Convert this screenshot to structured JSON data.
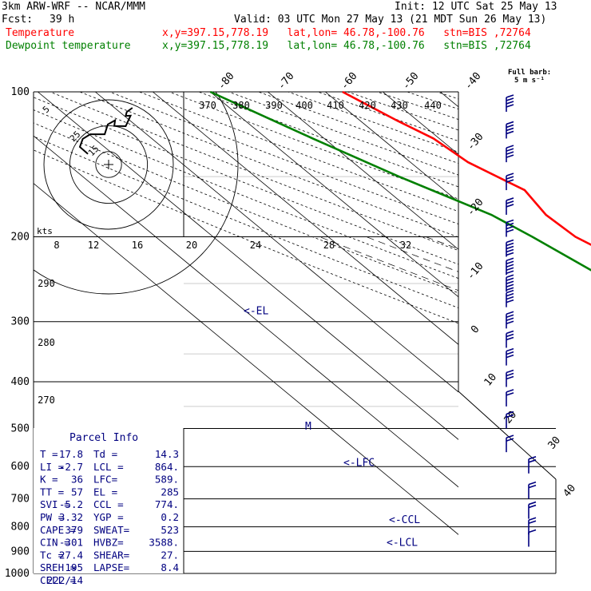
{
  "header": {
    "model": "3km ARW-WRF -- NCAR/MMM",
    "init": "Init: 12 UTC Sat 25 May 13",
    "fcst_label": "Fcst:",
    "fcst_value": "39 h",
    "valid": "Valid: 03 UTC Mon 27 May 13 (21 MDT Sun 26 May 13)",
    "temp_label": "Temperature",
    "dew_label": "Dewpoint temperature",
    "temp_loc": "x,y=397.15,778.19   lat,lon= 46.78,-100.76   stn=BIS ,72764",
    "dew_loc": "x,y=397.15,778.19   lat,lon= 46.78,-100.76   stn=BIS ,72764",
    "colors": {
      "text": "#000000",
      "temperature": "#ff0000",
      "dewpoint": "#008000"
    }
  },
  "barb_legend": {
    "line1": "Full barb:",
    "line2": "5 m s⁻¹"
  },
  "chart_data": {
    "type": "line",
    "subtype": "skew-t log-p sounding",
    "yscale": "log-pressure",
    "pressure_levels_hpa": [
      100,
      200,
      300,
      400,
      500,
      600,
      700,
      800,
      900,
      1000
    ],
    "ylim_hpa": [
      100,
      1000
    ],
    "isotherm_labels_c": [
      "-80",
      "-70",
      "-60",
      "-50",
      "-40",
      "-30",
      "-20",
      "-10",
      "0",
      "10",
      "20",
      "30",
      "40"
    ],
    "theta_labels_k": [
      "370",
      "380",
      "390",
      "400",
      "410",
      "420",
      "430",
      "440"
    ],
    "theta_side_labels_k": [
      "290",
      "280",
      "270"
    ],
    "mixing_ratio_labels": [
      "2",
      "3",
      "5",
      "8",
      "12",
      "20"
    ],
    "hodograph_speed_labels": [
      "8",
      "12",
      "16",
      "20",
      "24",
      "28",
      "32"
    ],
    "hodograph_ring_labels": [
      "5",
      "15",
      "25"
    ],
    "hodograph_units": "kts",
    "series": [
      {
        "name": "Temperature",
        "color": "#ff0000",
        "points": [
          {
            "p": 884,
            "t": 24.6
          },
          {
            "p": 870,
            "t": 25.8
          },
          {
            "p": 862,
            "t": 25.1
          },
          {
            "p": 820,
            "t": 23.6
          },
          {
            "p": 760,
            "t": 19.2
          },
          {
            "p": 700,
            "t": 14.4
          },
          {
            "p": 650,
            "t": 11.4
          },
          {
            "p": 600,
            "t": 6.8
          },
          {
            "p": 560,
            "t": 2.8
          },
          {
            "p": 500,
            "t": -3.4
          },
          {
            "p": 450,
            "t": -9.2
          },
          {
            "p": 400,
            "t": -16.6
          },
          {
            "p": 350,
            "t": -25.5
          },
          {
            "p": 300,
            "t": -35.5
          },
          {
            "p": 250,
            "t": -46.5
          },
          {
            "p": 215,
            "t": -55.0
          },
          {
            "p": 200,
            "t": -57.0
          },
          {
            "p": 180,
            "t": -57.5
          },
          {
            "p": 160,
            "t": -56.0
          },
          {
            "p": 140,
            "t": -60.0
          },
          {
            "p": 125,
            "t": -61.0
          },
          {
            "p": 115,
            "t": -63.5
          },
          {
            "p": 100,
            "t": -67.0
          }
        ]
      },
      {
        "name": "Dewpoint temperature",
        "color": "#008000",
        "points": [
          {
            "p": 884,
            "t": 14.1
          },
          {
            "p": 870,
            "t": 12.0
          },
          {
            "p": 855,
            "t": 11.0
          },
          {
            "p": 820,
            "t": 17.5
          },
          {
            "p": 790,
            "t": 17.9
          },
          {
            "p": 750,
            "t": 15.0
          },
          {
            "p": 700,
            "t": 8.0
          },
          {
            "p": 650,
            "t": 1.1
          },
          {
            "p": 600,
            "t": -4.5
          },
          {
            "p": 560,
            "t": -7.3
          },
          {
            "p": 520,
            "t": -11.0
          },
          {
            "p": 500,
            "t": -15.0
          },
          {
            "p": 450,
            "t": -25.8
          },
          {
            "p": 430,
            "t": -32.0
          },
          {
            "p": 400,
            "t": -35.5
          },
          {
            "p": 350,
            "t": -43.0
          },
          {
            "p": 300,
            "t": -56.0
          },
          {
            "p": 280,
            "t": -62.0
          },
          {
            "p": 250,
            "t": -60.0
          },
          {
            "p": 200,
            "t": -64.5
          },
          {
            "p": 180,
            "t": -67.0
          },
          {
            "p": 150,
            "t": -75.0
          },
          {
            "p": 125,
            "t": -82.0
          },
          {
            "p": 100,
            "t": -90.0
          }
        ]
      }
    ],
    "level_markers": [
      {
        "label": "<-EL",
        "p": 285
      },
      {
        "label": "M",
        "p": 495
      },
      {
        "label": "<-LFC",
        "p": 589
      },
      {
        "label": "<-CCL",
        "p": 774
      },
      {
        "label": "<-LCL",
        "p": 864
      }
    ],
    "hodograph_path_kts": [
      [
        9.2,
        21.9
      ],
      [
        7.0,
        20.3
      ],
      [
        6.6,
        18.8
      ],
      [
        8.5,
        18.9
      ],
      [
        6.6,
        14.8
      ],
      [
        2.2,
        14.9
      ],
      [
        2.5,
        17.1
      ],
      [
        -0.3,
        15.5
      ],
      [
        -1.5,
        11.7
      ],
      [
        -7.1,
        11.7
      ],
      [
        -10.0,
        9.9
      ],
      [
        -11.1,
        6.8
      ],
      [
        -8.0,
        4.1
      ]
    ],
    "wind_barbs": [
      {
        "p": 110,
        "speed_ms": 20
      },
      {
        "p": 125,
        "speed_ms": 20
      },
      {
        "p": 140,
        "speed_ms": 20
      },
      {
        "p": 160,
        "speed_ms": 15
      },
      {
        "p": 180,
        "speed_ms": 15
      },
      {
        "p": 200,
        "speed_ms": 20
      },
      {
        "p": 220,
        "speed_ms": 25
      },
      {
        "p": 240,
        "speed_ms": 25
      },
      {
        "p": 260,
        "speed_ms": 25
      },
      {
        "p": 280,
        "speed_ms": 20
      },
      {
        "p": 310,
        "speed_ms": 20
      },
      {
        "p": 340,
        "speed_ms": 15
      },
      {
        "p": 370,
        "speed_ms": 15
      },
      {
        "p": 410,
        "speed_ms": 15
      },
      {
        "p": 450,
        "speed_ms": 10
      },
      {
        "p": 500,
        "speed_ms": 10
      },
      {
        "p": 560,
        "speed_ms": 10
      },
      {
        "p": 620,
        "speed_ms": 10
      },
      {
        "p": 700,
        "speed_ms": 10
      },
      {
        "p": 770,
        "speed_ms": 10
      },
      {
        "p": 830,
        "speed_ms": 10
      },
      {
        "p": 880,
        "speed_ms": 5
      }
    ]
  },
  "parcel_info": {
    "title": "Parcel Info",
    "rows": [
      [
        "T  =",
        "17.8",
        "Td =",
        "14.3"
      ],
      [
        "LI =",
        "-2.7",
        "LCL =",
        "864."
      ],
      [
        "K  =",
        "36",
        "LFC=",
        "589."
      ],
      [
        "TT =",
        "57",
        "EL =",
        "285"
      ],
      [
        "SVI =",
        "-5.2",
        "CCL =",
        "774."
      ],
      [
        "PW =",
        "3.32",
        "YGP =",
        "0.2"
      ],
      [
        "CAPE =",
        "379",
        "SWEAT=",
        "523"
      ],
      [
        "CIN =",
        "-301",
        "HVBZ=",
        "3588."
      ],
      [
        "Tc =",
        "27.4",
        "SHEAR=",
        "27."
      ],
      [
        "SREH =",
        "195",
        "LAPSE=",
        "8.4"
      ],
      [
        "CELL =",
        "222/14",
        "",
        ""
      ]
    ]
  }
}
